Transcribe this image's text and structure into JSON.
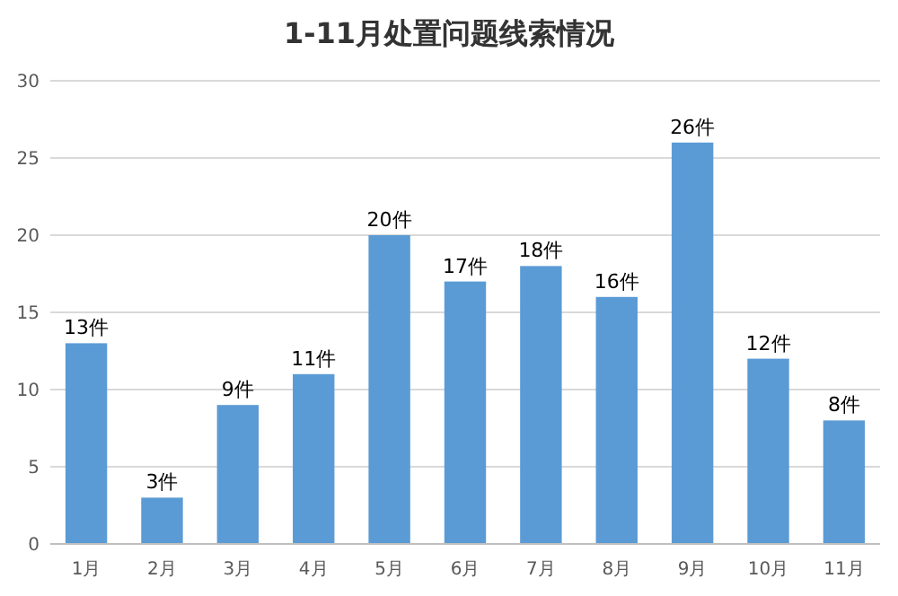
{
  "chart_data": {
    "type": "bar",
    "title": "1-11月处置问题线索情况",
    "categories": [
      "1月",
      "2月",
      "3月",
      "4月",
      "5月",
      "6月",
      "7月",
      "8月",
      "9月",
      "10月",
      "11月"
    ],
    "values": [
      13,
      3,
      9,
      11,
      20,
      17,
      18,
      16,
      26,
      12,
      8
    ],
    "value_labels": [
      "13件",
      "3件",
      "9件",
      "11件",
      "20件",
      "17件",
      "18件",
      "16件",
      "26件",
      "12件",
      "8件"
    ],
    "color": "#5b9bd5",
    "ylim": [
      0,
      30
    ],
    "yticks": [
      0,
      5,
      10,
      15,
      20,
      25,
      30
    ],
    "grid": "y"
  }
}
